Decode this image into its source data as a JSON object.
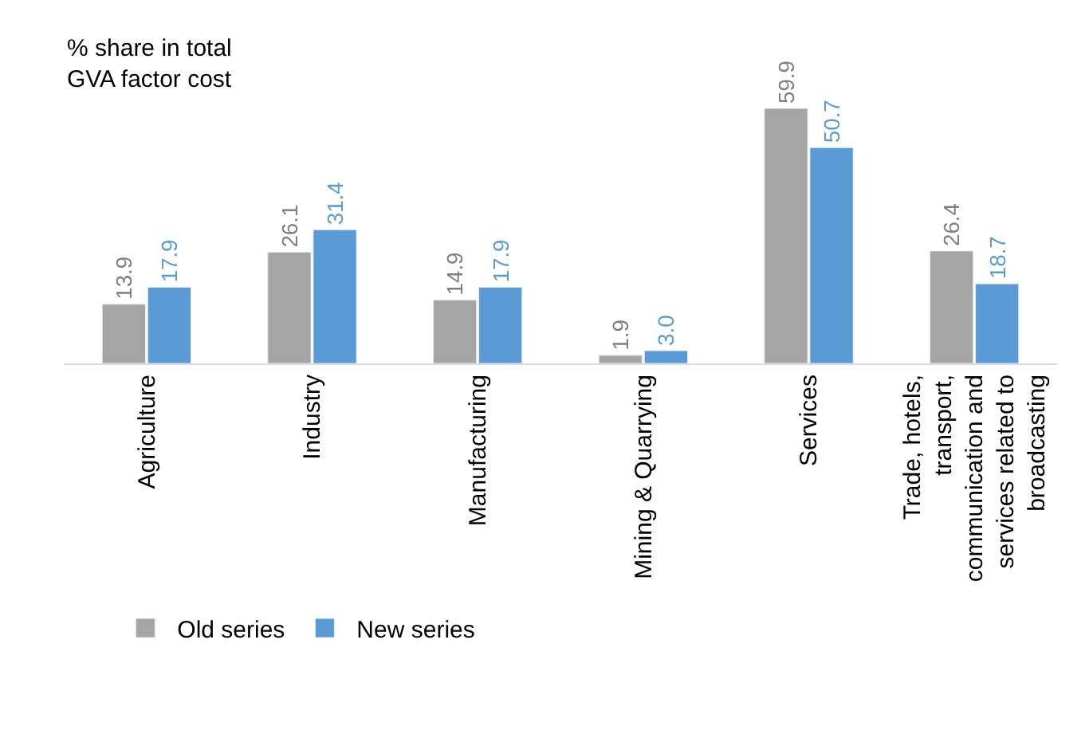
{
  "chart_data": {
    "type": "bar",
    "title": "% share in total GVA factor cost",
    "categories": [
      "Agriculture",
      "Industry",
      "Manufacturing",
      "Mining & Quarrying",
      "Services",
      "Trade, hotels, transport, communication and services related to broadcasting"
    ],
    "series": [
      {
        "name": "Old series",
        "color": "#a5a5a5",
        "values": [
          13.9,
          26.1,
          14.9,
          1.9,
          59.9,
          26.4
        ],
        "value_labels": [
          "13.9",
          "26.1",
          "14.9",
          "1.9",
          "59.9",
          "26.4"
        ]
      },
      {
        "name": "New series",
        "color": "#5b9bd5",
        "values": [
          17.9,
          31.4,
          17.9,
          3.0,
          50.7,
          18.7
        ],
        "value_labels": [
          "17.9",
          "31.4",
          "17.9",
          "3.0",
          "50.7",
          "18.7"
        ]
      }
    ],
    "legend": "bottom"
  }
}
